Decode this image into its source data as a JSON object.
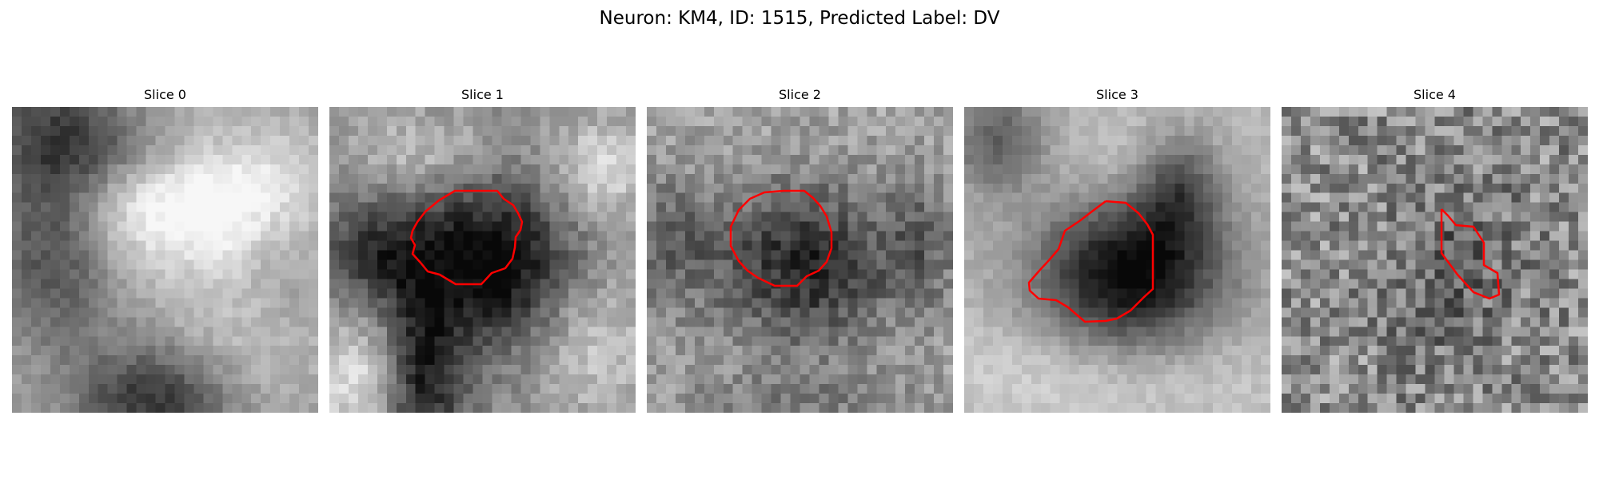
{
  "figure": {
    "title": "Neuron: KM4, ID: 1515, Predicted Label: DV"
  },
  "panels": [
    {
      "title": "Slice 0",
      "has_contour": false
    },
    {
      "title": "Slice 1",
      "has_contour": true
    },
    {
      "title": "Slice 2",
      "has_contour": true
    },
    {
      "title": "Slice 3",
      "has_contour": true
    },
    {
      "title": "Slice 4",
      "has_contour": true
    }
  ],
  "colors": {
    "contour": "#ff0000",
    "background": "#ffffff"
  },
  "colormap": "gray"
}
